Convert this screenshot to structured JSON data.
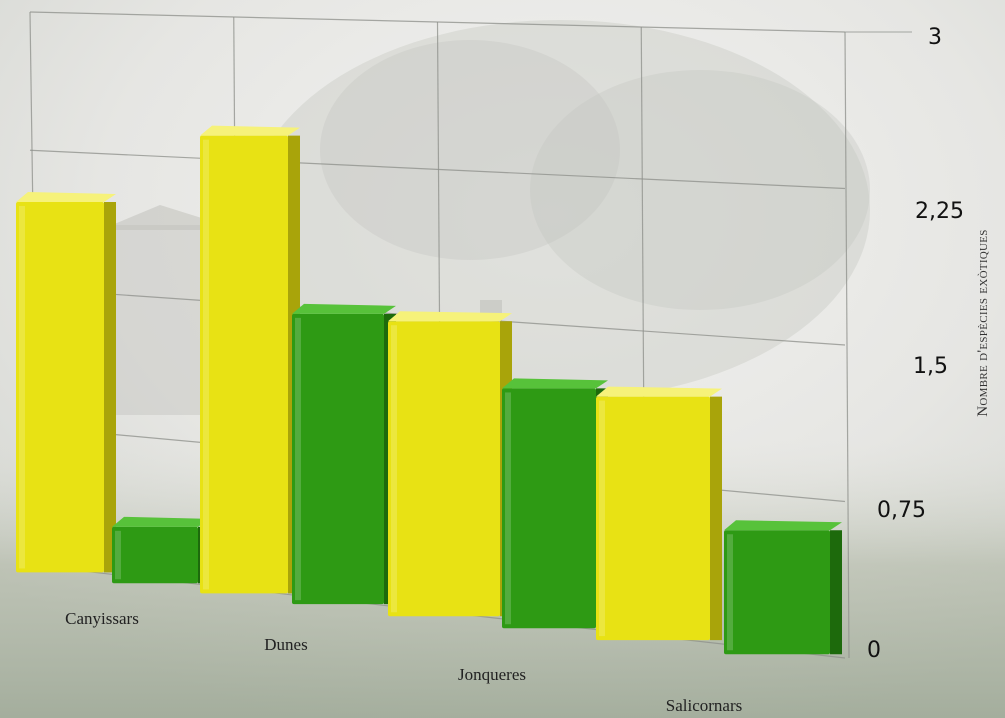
{
  "chart_data": {
    "type": "bar",
    "title": "",
    "xlabel": "",
    "ylabel": "Nombre d'espècies exòtiques",
    "categories": [
      "Canyissars",
      "Dunes",
      "Jonqueres",
      "Salicornars"
    ],
    "series": [
      {
        "values": [
          2.0,
          2.4,
          1.5,
          1.2
        ]
      },
      {
        "values": [
          0.3,
          1.5,
          1.2,
          0.6
        ]
      }
    ],
    "ylim": [
      0,
      3
    ],
    "yticks": [
      "0",
      "0,75",
      "1,5",
      "2,25",
      "3"
    ],
    "grid": true,
    "legend": "none",
    "colors": {
      "series_0": "#e8e214",
      "series_0_top": "#f6f27a",
      "series_0_side": "#a9a40a",
      "series_1": "#2e9a14",
      "series_1_top": "#57c23a",
      "series_1_side": "#1d6a0c"
    }
  }
}
